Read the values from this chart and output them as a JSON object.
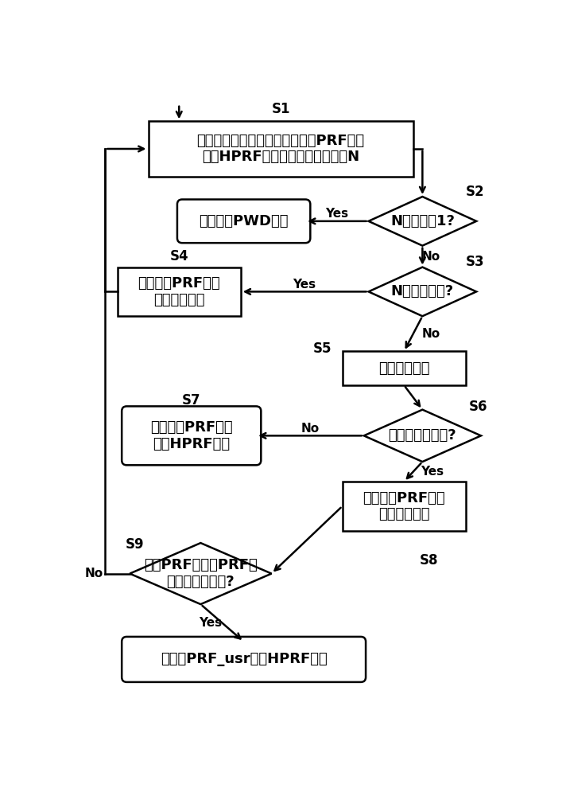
{
  "bg_color": "#ffffff",
  "S1_text": "计算当前取样门深度下，用备选PRF参数\n进行HPRF发射需要的取样门个数N",
  "S2_text": "N小于等于1?",
  "PWD_text": "进行普通PWD模式",
  "S3_text": "N大于预定值?",
  "S4_text": "降低备选PRF参数\n到下一个档位",
  "S5_text": "计算死区位置",
  "S6_text": "取样门位于死区?",
  "S7_text": "使用备用PRF参数\n进行HPRF发射",
  "S8_text": "提高备选PRF参数\n到上一个档位",
  "S9_text": "备选PRF参数为PRF列\n表中的最高档位?",
  "S10_text": "用原有PRF_usr进行HPRF发射",
  "yes_text": "Yes",
  "no_text": "No"
}
